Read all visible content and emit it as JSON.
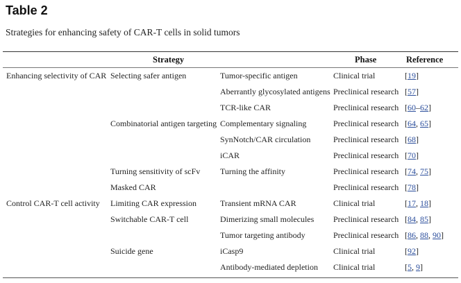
{
  "table_label": "Table 2",
  "caption": "Strategies for enhancing safety of CAR-T cells in solid tumors",
  "headers": {
    "strategy": "Strategy",
    "phase": "Phase",
    "reference": "Reference"
  },
  "rows": [
    {
      "category": "Enhancing selectivity of CAR",
      "approach": "Selecting safer antigen",
      "method": "Tumor-specific antigen",
      "phase": "Clinical trial",
      "refs": [
        "19"
      ]
    },
    {
      "category": "",
      "approach": "",
      "method": "Aberrantly glycosylated antigens",
      "phase": "Preclinical research",
      "refs": [
        "57"
      ]
    },
    {
      "category": "",
      "approach": "",
      "method": "TCR-like CAR",
      "phase": "Preclinical research",
      "refs": [
        "60",
        "62"
      ],
      "ref_sep": "–"
    },
    {
      "category": "",
      "approach": "Combinatorial antigen targeting",
      "method": "Complementary signaling",
      "phase": "Preclinical research",
      "refs": [
        "64",
        "65"
      ]
    },
    {
      "category": "",
      "approach": "",
      "method": "SynNotch/CAR circulation",
      "phase": "Preclinical research",
      "refs": [
        "68"
      ]
    },
    {
      "category": "",
      "approach": "",
      "method": "iCAR",
      "phase": "Preclinical research",
      "refs": [
        "70"
      ]
    },
    {
      "category": "",
      "approach": "Turning sensitivity of scFv",
      "method": "Turning the affinity",
      "phase": "Preclinical research",
      "refs": [
        "74",
        "75"
      ]
    },
    {
      "category": "",
      "approach": "Masked CAR",
      "method": "",
      "phase": "Preclinical research",
      "refs": [
        "78"
      ]
    },
    {
      "category": "Control CAR-T cell activity",
      "approach": "Limiting CAR expression",
      "method": "Transient mRNA CAR",
      "phase": "Clinical trial",
      "refs": [
        "17",
        "18"
      ]
    },
    {
      "category": "",
      "approach": "Switchable CAR-T cell",
      "method": "Dimerizing small molecules",
      "phase": "Preclinical research",
      "refs": [
        "84",
        "85"
      ]
    },
    {
      "category": "",
      "approach": "",
      "method": "Tumor targeting antibody",
      "phase": "Preclinical research",
      "refs": [
        "86",
        "88",
        "90"
      ]
    },
    {
      "category": "",
      "approach": "Suicide gene",
      "method": "iCasp9",
      "phase": "Clinical trial",
      "refs": [
        "92"
      ]
    },
    {
      "category": "",
      "approach": "",
      "method": "Antibody-mediated depletion",
      "phase": "Clinical trial",
      "refs": [
        "5",
        "9"
      ]
    }
  ]
}
